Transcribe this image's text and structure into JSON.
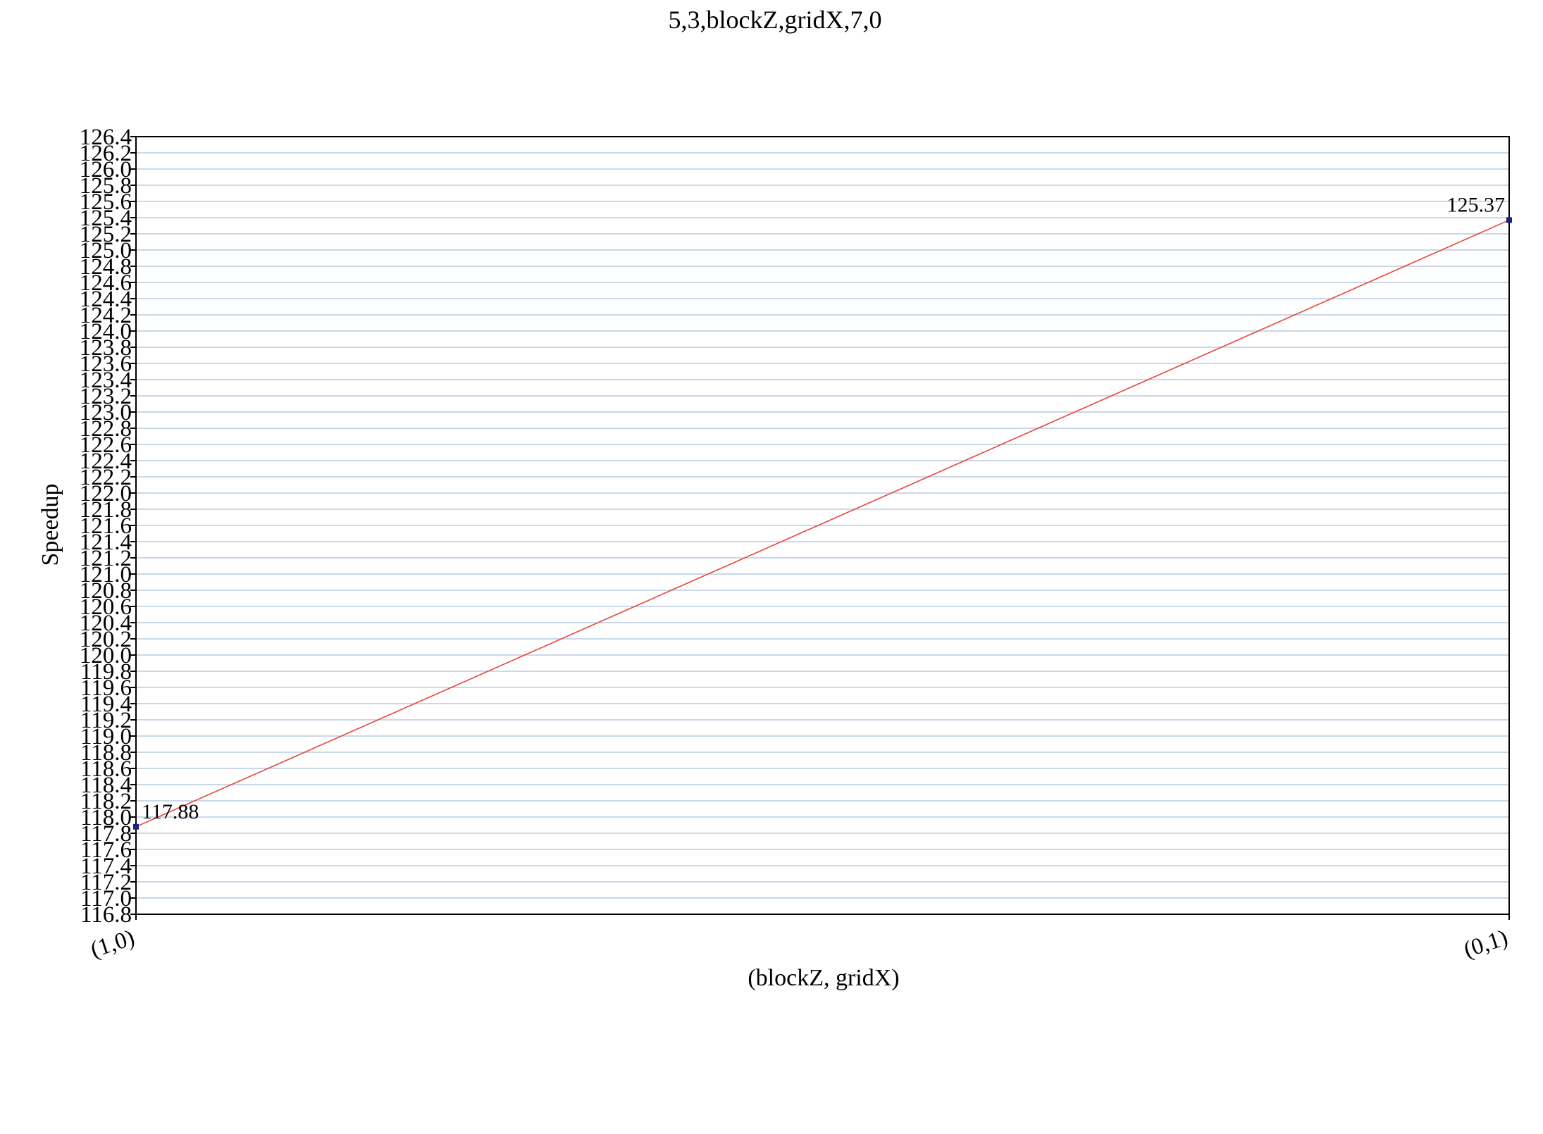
{
  "chart_data": {
    "type": "line",
    "title": "5,3,blockZ,gridX,7,0",
    "xlabel": "(blockZ, gridX)",
    "ylabel": "Speedup",
    "categories": [
      "(1,0)",
      "(0,1)"
    ],
    "series": [
      {
        "values": [
          117.88,
          125.37
        ],
        "data_labels": [
          "117.88",
          "125.37"
        ],
        "color": "#e8453c",
        "marker_color": "#1a237e"
      }
    ],
    "ylim": [
      116.8,
      126.4
    ],
    "y_tick_step": 0.2,
    "y_ticks": [
      "116.8",
      "117.0",
      "117.2",
      "117.4",
      "117.6",
      "117.8",
      "118.0",
      "118.2",
      "118.4",
      "118.6",
      "118.8",
      "119.0",
      "119.2",
      "119.4",
      "119.6",
      "119.8",
      "120.0",
      "120.2",
      "120.4",
      "120.6",
      "120.8",
      "121.0",
      "121.2",
      "121.4",
      "121.6",
      "121.8",
      "122.0",
      "122.2",
      "122.4",
      "122.6",
      "122.8",
      "123.0",
      "123.2",
      "123.4",
      "123.6",
      "123.8",
      "124.0",
      "124.2",
      "124.4",
      "124.6",
      "124.8",
      "125.0",
      "125.2",
      "125.4",
      "125.6",
      "125.8",
      "126.0",
      "126.2",
      "126.4"
    ],
    "grid": true,
    "grid_color": "#b8cce4",
    "legend": "none"
  }
}
